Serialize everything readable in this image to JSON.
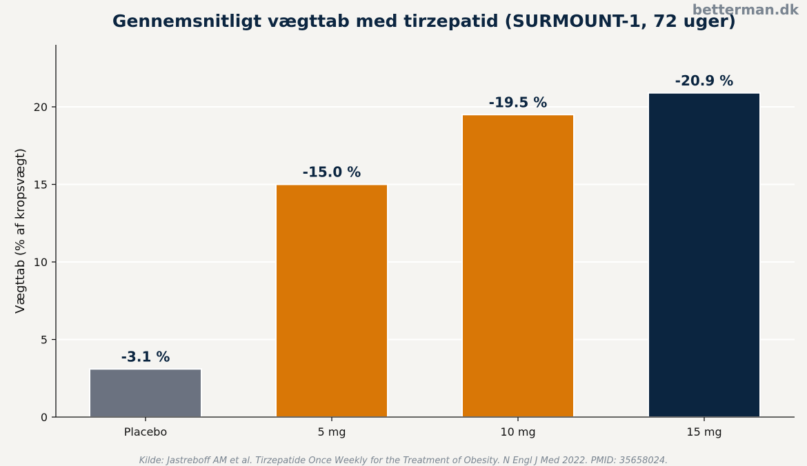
{
  "title": "Gennemsnitligt vægttab med tirzepatid (SURMOUNT-1, 72 uger)",
  "watermark": "betterman.dk",
  "source": "Kilde: Jastreboff AM et al. Tirzepatide Once Weekly for the Treatment of Obesity. N Engl J Med 2022. PMID: 35658024.",
  "colors": {
    "background": "#f5f4f1",
    "placebo": "#6b7280",
    "orange": "#d97706",
    "navy": "#0b2540",
    "grid": "#ffffff"
  },
  "chart_data": {
    "type": "bar",
    "title": "Gennemsnitligt vægttab med tirzepatid (SURMOUNT-1, 72 uger)",
    "xlabel": "",
    "ylabel": "Vægttab (% af kropsvægt)",
    "categories": [
      "Placebo",
      "5 mg",
      "10 mg",
      "15 mg"
    ],
    "values": [
      3.1,
      15.0,
      19.5,
      20.9
    ],
    "data_labels": [
      "-3.1 %",
      "-15.0 %",
      "-19.5 %",
      "-20.9 %"
    ],
    "bar_colors": [
      "#6b7280",
      "#d97706",
      "#d97706",
      "#0b2540"
    ],
    "ylim": [
      0,
      24
    ],
    "yticks": [
      0,
      5,
      10,
      15,
      20
    ],
    "ytick_labels": [
      "0",
      "5",
      "10",
      "15",
      "20"
    ],
    "grid": true,
    "grid_axis": "y"
  }
}
